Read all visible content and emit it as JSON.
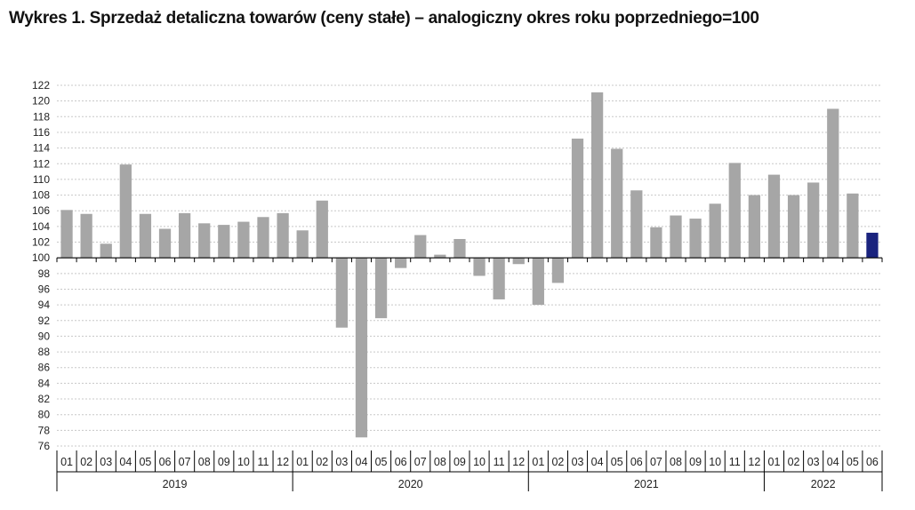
{
  "chart_data": {
    "type": "bar",
    "title": "Wykres 1. Sprzedaż detaliczna towarów (ceny stałe) – analogiczny okres roku poprzedniego=100",
    "baseline": 100,
    "ylim": [
      76,
      122
    ],
    "yticks": [
      76,
      78,
      80,
      82,
      84,
      86,
      88,
      90,
      92,
      94,
      96,
      98,
      100,
      102,
      104,
      106,
      108,
      110,
      112,
      114,
      116,
      118,
      120,
      122
    ],
    "grid": true,
    "colors": {
      "bar": "#a6a6a6",
      "highlight": "#1a237e",
      "grid": "#c8c8c8",
      "axis": "#000000"
    },
    "highlight_index": 41,
    "years": [
      {
        "label": "2019",
        "start": 0,
        "count": 12
      },
      {
        "label": "2020",
        "start": 12,
        "count": 12
      },
      {
        "label": "2021",
        "start": 24,
        "count": 12
      },
      {
        "label": "2022",
        "start": 36,
        "count": 6
      }
    ],
    "categories": [
      "01",
      "02",
      "03",
      "04",
      "05",
      "06",
      "07",
      "08",
      "09",
      "10",
      "11",
      "12",
      "01",
      "02",
      "03",
      "04",
      "05",
      "06",
      "07",
      "08",
      "09",
      "10",
      "11",
      "12",
      "01",
      "02",
      "03",
      "04",
      "05",
      "06",
      "07",
      "08",
      "09",
      "10",
      "11",
      "12",
      "01",
      "02",
      "03",
      "04",
      "05",
      "06"
    ],
    "values": [
      106.1,
      105.6,
      101.8,
      111.9,
      105.6,
      103.7,
      105.7,
      104.4,
      104.2,
      104.6,
      105.2,
      105.7,
      103.5,
      107.3,
      91.1,
      77.1,
      92.3,
      98.7,
      102.9,
      100.4,
      102.4,
      97.7,
      94.7,
      99.2,
      94.0,
      96.8,
      115.2,
      121.1,
      113.9,
      108.6,
      103.9,
      105.4,
      105.0,
      106.9,
      112.1,
      108.0,
      110.6,
      108.0,
      109.6,
      119.0,
      108.2,
      103.2
    ]
  }
}
